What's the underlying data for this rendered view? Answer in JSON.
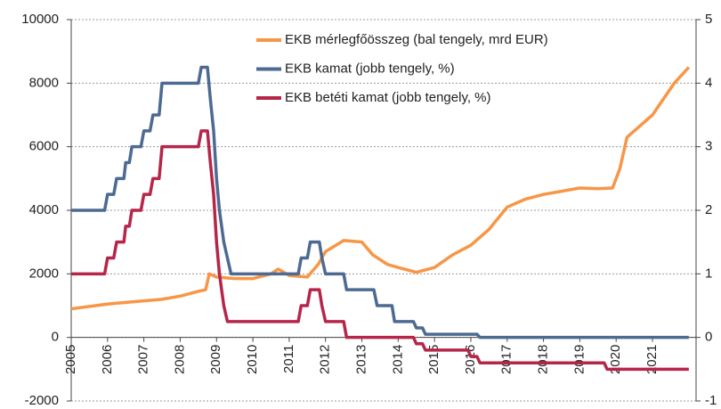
{
  "chart_data": {
    "type": "line",
    "xlim": [
      2005,
      2022.2
    ],
    "xticks": [
      2005,
      2006,
      2007,
      2008,
      2009,
      2010,
      2011,
      2012,
      2013,
      2014,
      2015,
      2016,
      2017,
      2018,
      2019,
      2020,
      2021
    ],
    "ylim": [
      -2000,
      10000
    ],
    "yticks": [
      -2000,
      0,
      2000,
      4000,
      6000,
      8000,
      10000
    ],
    "y2lim": [
      -1,
      5
    ],
    "y2ticks": [
      -1,
      0,
      1,
      2,
      3,
      4,
      5
    ],
    "grid": true,
    "legend": "upper center",
    "series": [
      {
        "name": "EKB mérlegfőösszeg (bal tengely, mrd EUR)",
        "color": "#f79646",
        "x": [
          2005,
          2006,
          2007,
          2007.5,
          2008,
          2008.5,
          2008.7,
          2008.8,
          2009,
          2009.5,
          2010,
          2010.5,
          2010.7,
          2011,
          2011.5,
          2011.8,
          2012,
          2012.5,
          2013,
          2013.3,
          2013.7,
          2014,
          2014.5,
          2015,
          2015.5,
          2016,
          2016.5,
          2017,
          2017.5,
          2018,
          2018.5,
          2019,
          2019.5,
          2019.9,
          2020.1,
          2020.3,
          2020.6,
          2021,
          2021.3,
          2021.6,
          2022
        ],
        "values": [
          900,
          1050,
          1150,
          1200,
          1300,
          1450,
          1500,
          2000,
          1900,
          1850,
          1850,
          2000,
          2150,
          1950,
          1900,
          2300,
          2700,
          3050,
          3000,
          2600,
          2300,
          2200,
          2050,
          2200,
          2600,
          2900,
          3400,
          4100,
          4350,
          4500,
          4600,
          4700,
          4680,
          4700,
          5300,
          6300,
          6600,
          7000,
          7500,
          8000,
          8500
        ]
      },
      {
        "name": "EKB kamat (jobb tengely, %)",
        "color": "#4d6a92",
        "axis": "y2",
        "x": [
          2005,
          2005.92,
          2006,
          2006.17,
          2006.25,
          2006.45,
          2006.5,
          2006.6,
          2006.67,
          2006.92,
          2007,
          2007.17,
          2007.25,
          2007.42,
          2007.5,
          2008.5,
          2008.58,
          2008.75,
          2008.83,
          2008.92,
          2009,
          2009.08,
          2009.2,
          2009.3,
          2009.4,
          2011.25,
          2011.33,
          2011.5,
          2011.58,
          2011.83,
          2011.9,
          2012,
          2012.5,
          2012.58,
          2013.33,
          2013.42,
          2013.83,
          2013.9,
          2014.42,
          2014.5,
          2014.67,
          2014.75,
          2016.17,
          2016.25,
          2022
        ],
        "values": [
          2,
          2,
          2.25,
          2.25,
          2.5,
          2.5,
          2.75,
          2.75,
          3,
          3,
          3.25,
          3.25,
          3.5,
          3.5,
          4,
          4,
          4.25,
          4.25,
          3.75,
          3.25,
          2.5,
          2,
          1.5,
          1.25,
          1,
          1,
          1.25,
          1.25,
          1.5,
          1.5,
          1.25,
          1,
          1,
          0.75,
          0.75,
          0.5,
          0.5,
          0.25,
          0.25,
          0.15,
          0.15,
          0.05,
          0.05,
          0,
          0
        ]
      },
      {
        "name": "EKB betéti kamat (jobb tengely, %)",
        "color": "#b5264a",
        "axis": "y2",
        "x": [
          2005,
          2005.92,
          2006,
          2006.17,
          2006.25,
          2006.45,
          2006.5,
          2006.6,
          2006.67,
          2006.92,
          2007,
          2007.17,
          2007.25,
          2007.42,
          2007.5,
          2008.5,
          2008.58,
          2008.75,
          2008.83,
          2008.92,
          2009,
          2009.08,
          2009.2,
          2009.3,
          2011.25,
          2011.33,
          2011.5,
          2011.58,
          2011.83,
          2011.9,
          2012,
          2012.5,
          2012.58,
          2014.42,
          2014.5,
          2014.67,
          2014.75,
          2015.92,
          2016,
          2016.17,
          2016.25,
          2019.67,
          2019.75,
          2022
        ],
        "values": [
          1,
          1,
          1.25,
          1.25,
          1.5,
          1.5,
          1.75,
          1.75,
          2,
          2,
          2.25,
          2.25,
          2.5,
          2.5,
          3,
          3,
          3.25,
          3.25,
          2.75,
          2.25,
          1.5,
          1,
          0.5,
          0.25,
          0.25,
          0.5,
          0.5,
          0.75,
          0.75,
          0.5,
          0.25,
          0.25,
          0,
          0,
          -0.1,
          -0.1,
          -0.2,
          -0.2,
          -0.3,
          -0.3,
          -0.4,
          -0.4,
          -0.5,
          -0.5
        ]
      }
    ]
  }
}
